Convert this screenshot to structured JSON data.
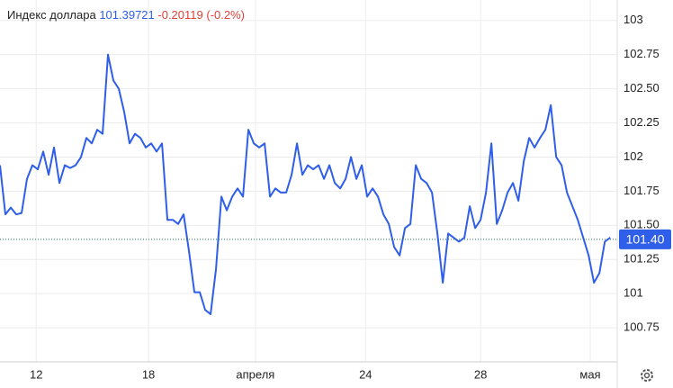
{
  "chart_data": {
    "type": "line",
    "title": "Индекс доллара",
    "current": {
      "value": 101.39721,
      "label": "101.40"
    },
    "change": "-0.20119",
    "change_pct": "(-0.2%)",
    "series": [
      {
        "color": "#2f5ee8",
        "values": [
          101.94,
          101.58,
          101.63,
          101.58,
          101.59,
          101.84,
          101.94,
          101.91,
          102.04,
          101.87,
          102.07,
          101.81,
          101.94,
          101.92,
          101.94,
          102.0,
          102.14,
          102.1,
          102.2,
          102.17,
          102.75,
          102.56,
          102.5,
          102.33,
          102.1,
          102.17,
          102.14,
          102.07,
          102.1,
          102.04,
          102.1,
          101.54,
          101.54,
          101.51,
          101.58,
          101.31,
          101.01,
          101.01,
          100.88,
          100.85,
          101.18,
          101.71,
          101.61,
          101.71,
          101.77,
          101.71,
          102.2,
          102.1,
          102.07,
          102.1,
          101.71,
          101.77,
          101.74,
          101.74,
          101.87,
          102.1,
          101.87,
          101.94,
          101.91,
          101.94,
          101.84,
          101.94,
          101.81,
          101.77,
          101.84,
          102.0,
          101.84,
          101.94,
          101.71,
          101.77,
          101.71,
          101.58,
          101.51,
          101.34,
          101.28,
          101.48,
          101.51,
          101.94,
          101.84,
          101.81,
          101.74,
          101.44,
          101.08,
          101.44,
          101.41,
          101.38,
          101.41,
          101.64,
          101.48,
          101.54,
          101.74,
          102.1,
          101.51,
          101.61,
          101.74,
          101.81,
          101.68,
          101.97,
          102.14,
          102.07,
          102.14,
          102.2,
          102.38,
          102.0,
          101.94,
          101.74,
          101.64,
          101.54,
          101.41,
          101.28,
          101.08,
          101.15,
          101.38,
          101.41
        ]
      }
    ],
    "xlim": [
      0,
      114.3
    ],
    "ylim": [
      100.5,
      103.15
    ],
    "xticks": [
      {
        "value": 6.7,
        "label": "12"
      },
      {
        "value": 27.5,
        "label": "18"
      },
      {
        "value": 47.3,
        "label": "апреля"
      },
      {
        "value": 67.7,
        "label": "24"
      },
      {
        "value": 89,
        "label": "28"
      },
      {
        "value": 109.3,
        "label": "мая"
      }
    ],
    "yticks": [
      103,
      102.75,
      {
        "value": 102.5,
        "label": "102.50"
      },
      102.25,
      102,
      101.75,
      {
        "value": 101.5,
        "label": "101.50"
      },
      101.25,
      101,
      100.75
    ],
    "grid": true
  }
}
